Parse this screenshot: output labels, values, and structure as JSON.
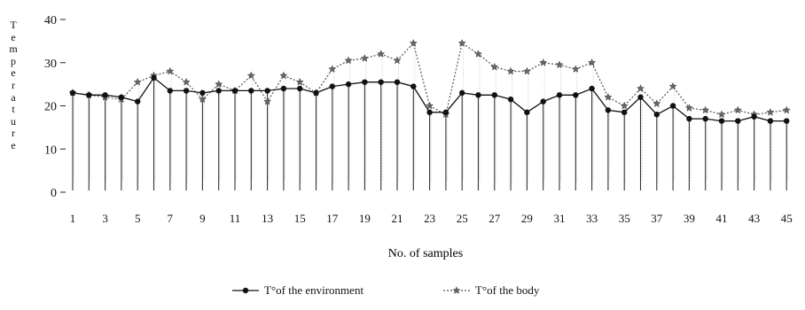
{
  "chart_data": {
    "type": "line",
    "xlabel": "No. of samples",
    "ylabel": "Temperature",
    "x": [
      1,
      2,
      3,
      4,
      5,
      6,
      7,
      8,
      9,
      10,
      11,
      12,
      13,
      14,
      15,
      16,
      17,
      18,
      19,
      20,
      21,
      22,
      23,
      24,
      25,
      26,
      27,
      28,
      29,
      30,
      31,
      32,
      33,
      34,
      35,
      36,
      37,
      38,
      39,
      40,
      41,
      42,
      43,
      44,
      45
    ],
    "x_tick_labels": [
      "1",
      "3",
      "5",
      "7",
      "9",
      "11",
      "13",
      "15",
      "17",
      "19",
      "21",
      "23",
      "25",
      "27",
      "29",
      "31",
      "33",
      "35",
      "37",
      "39",
      "41",
      "43",
      "45"
    ],
    "y_ticks": [
      "0",
      "10",
      "20",
      "30",
      "40"
    ],
    "ylim": [
      0,
      40
    ],
    "grid": false,
    "legend_position": "bottom-center",
    "series": [
      {
        "name": "T°of the environment",
        "marker": "circle",
        "line_style": "solid",
        "color": "#111111",
        "values": [
          23,
          22.5,
          22.5,
          22,
          21,
          26.5,
          23.5,
          23.5,
          23,
          23.5,
          23.5,
          23.5,
          23.5,
          24,
          24,
          23,
          24.5,
          25,
          25.5,
          25.5,
          25.5,
          24.5,
          18.5,
          18.5,
          23,
          22.5,
          22.5,
          21.5,
          18.5,
          21,
          22.5,
          22.5,
          24,
          19,
          18.5,
          22,
          18,
          20,
          17,
          17,
          16.5,
          16.5,
          17.5,
          16.5,
          16.5
        ]
      },
      {
        "name": "T°of the body",
        "marker": "star",
        "line_style": "dotted",
        "color": "#555555",
        "values": [
          23,
          22.5,
          22,
          21.5,
          25.5,
          27,
          28,
          25.5,
          21.5,
          25,
          23.5,
          27,
          21,
          27,
          25.5,
          23,
          28.5,
          30.5,
          31,
          32,
          30.5,
          34.5,
          20,
          18,
          34.5,
          32,
          29,
          28,
          28,
          30,
          29.5,
          28.5,
          30,
          22,
          20,
          24,
          20.5,
          24.5,
          19.5,
          19,
          18,
          19,
          18,
          18.5,
          19
        ]
      }
    ]
  }
}
